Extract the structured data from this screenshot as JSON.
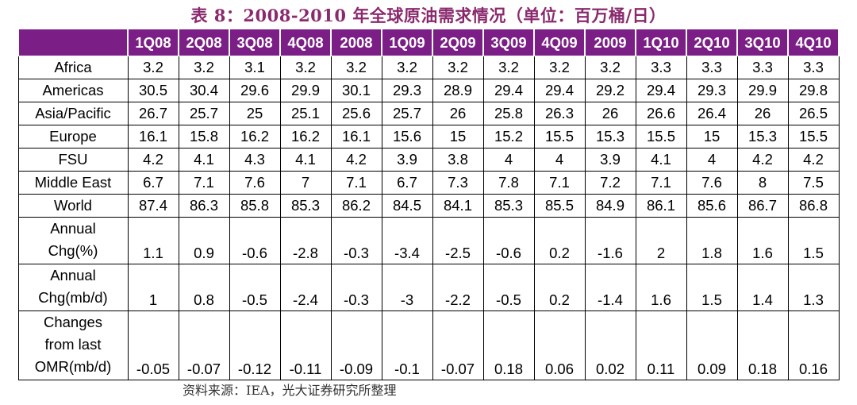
{
  "title": "表 8：2008-2010 年全球原油需求情况（单位：百万桶/日）",
  "columns": [
    "1Q08",
    "2Q08",
    "3Q08",
    "4Q08",
    "2008",
    "1Q09",
    "2Q09",
    "3Q09",
    "4Q09",
    "2009",
    "1Q10",
    "2Q10",
    "3Q10",
    "4Q10"
  ],
  "rows": [
    {
      "label": "Africa",
      "values": [
        "3.2",
        "3.2",
        "3.1",
        "3.2",
        "3.2",
        "3.2",
        "3.2",
        "3.2",
        "3.2",
        "3.2",
        "3.3",
        "3.3",
        "3.3",
        "3.3"
      ]
    },
    {
      "label": "Americas",
      "values": [
        "30.5",
        "30.4",
        "29.6",
        "29.9",
        "30.1",
        "29.3",
        "28.9",
        "29.4",
        "29.4",
        "29.2",
        "29.4",
        "29.3",
        "29.9",
        "29.8"
      ]
    },
    {
      "label": "Asia/Pacific",
      "values": [
        "26.7",
        "25.7",
        "25",
        "25.1",
        "25.6",
        "25.7",
        "26",
        "25.8",
        "26.3",
        "26",
        "26.6",
        "26.4",
        "26",
        "26.5"
      ]
    },
    {
      "label": "Europe",
      "values": [
        "16.1",
        "15.8",
        "16.2",
        "16.2",
        "16.1",
        "15.6",
        "15",
        "15.2",
        "15.5",
        "15.3",
        "15.5",
        "15",
        "15.3",
        "15.5"
      ]
    },
    {
      "label": "FSU",
      "values": [
        "4.2",
        "4.1",
        "4.3",
        "4.1",
        "4.2",
        "3.9",
        "3.8",
        "4",
        "4",
        "3.9",
        "4.1",
        "4",
        "4.2",
        "4.2"
      ]
    },
    {
      "label": "Middle East",
      "values": [
        "6.7",
        "7.1",
        "7.6",
        "7",
        "7.1",
        "6.7",
        "7.3",
        "7.8",
        "7.1",
        "7.2",
        "7.1",
        "7.6",
        "8",
        "7.5"
      ]
    },
    {
      "label": "World",
      "values": [
        "87.4",
        "86.3",
        "85.8",
        "85.3",
        "86.2",
        "84.5",
        "84.1",
        "85.3",
        "85.5",
        "84.9",
        "86.1",
        "85.6",
        "86.7",
        "86.8"
      ]
    },
    {
      "label": "Annual Chg(%)",
      "label_lines": [
        "Annual",
        "Chg(%)"
      ],
      "values": [
        "1.1",
        "0.9",
        "-0.6",
        "-2.8",
        "-0.3",
        "-3.4",
        "-2.5",
        "-0.6",
        "0.2",
        "-1.6",
        "2",
        "1.8",
        "1.6",
        "1.5"
      ]
    },
    {
      "label": "Annual Chg(mb/d)",
      "label_lines": [
        "Annual",
        "Chg(mb/d)"
      ],
      "values": [
        "1",
        "0.8",
        "-0.5",
        "-2.4",
        "-0.3",
        "-3",
        "-2.2",
        "-0.5",
        "0.2",
        "-1.4",
        "1.6",
        "1.5",
        "1.4",
        "1.3"
      ]
    },
    {
      "label": "Changes from last OMR(mb/d)",
      "label_lines": [
        "Changes",
        "from last",
        "OMR(mb/d)"
      ],
      "values": [
        "-0.05",
        "-0.07",
        "-0.12",
        "-0.11",
        "-0.09",
        "-0.1",
        "-0.07",
        "0.18",
        "0.06",
        "0.02",
        "0.11",
        "0.09",
        "0.18",
        "0.16"
      ]
    }
  ],
  "source": "资料来源：IEA，光大证券研究所整理",
  "colors": {
    "header_bg": "#7b1f86",
    "title": "#8a2a6e"
  }
}
